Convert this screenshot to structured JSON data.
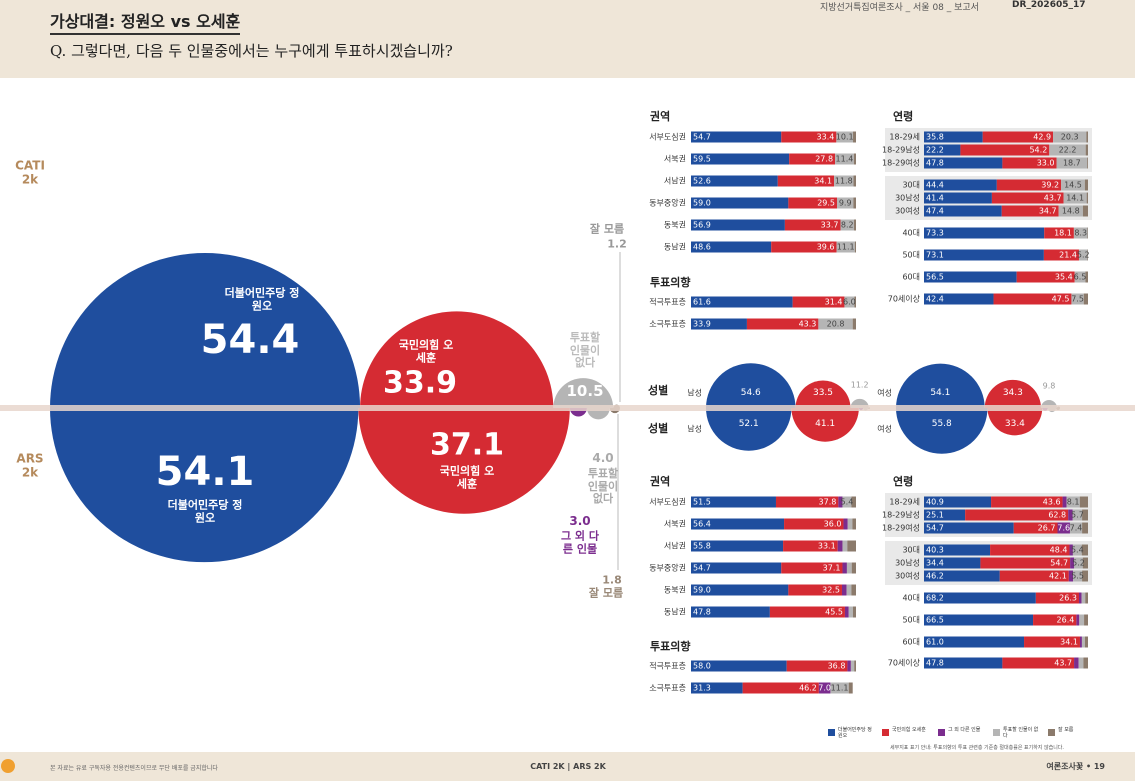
{
  "header": {
    "title": "가상대결: 정원오 vs 오세훈",
    "question": "Q. 그렇다면, 다음 두 인물중에서는 누구에게 투표하시겠습니까?",
    "report": "지방선거특집여론조사 _ 서울 08 _ 보고서",
    "code": "DR_202605_17"
  },
  "chart_data": [
    {
      "type": "bubble",
      "groups": [
        "CATI 2k",
        "ARS 2k"
      ],
      "series": [
        {
          "name": "더불어민주당 정원오",
          "color": "#1f4e9e",
          "values": [
            54.4,
            54.1
          ]
        },
        {
          "name": "국민의힘 오세훈",
          "color": "#d52b33",
          "values": [
            33.9,
            37.1
          ]
        },
        {
          "name": "그 외 다른 인물",
          "color": "#7b2d8e",
          "values": [
            null,
            3.0
          ],
          "value_labels": [
            null,
            "3.0"
          ]
        },
        {
          "name": "투표할 인물이 없다",
          "color": "#b5b5b5",
          "values": [
            10.5,
            4.0
          ],
          "value_labels": [
            "10.5",
            "4.0"
          ]
        },
        {
          "name": "잘 모름",
          "color": "#8b7a6b",
          "values": [
            1.2,
            1.8
          ]
        }
      ]
    },
    {
      "type": "bar",
      "title": "권역",
      "xlim": [
        0,
        100
      ],
      "categories": [
        "서부도심권",
        "서북권",
        "서남권",
        "동부중앙권",
        "동북권",
        "동남권"
      ],
      "series": [
        {
          "color": "#1f4e9e",
          "values": [
            54.7,
            59.5,
            52.6,
            59.0,
            56.9,
            48.6
          ],
          "value_labels": [
            "54.7",
            "59.5",
            "52.6",
            "59.0",
            "56.9",
            "48.6"
          ]
        },
        {
          "color": "#d52b33",
          "values": [
            33.4,
            27.8,
            34.1,
            29.5,
            33.7,
            39.6
          ]
        },
        {
          "color": "#b5b5b5",
          "values": [
            10.1,
            11.4,
            11.8,
            9.9,
            8.2,
            11.1
          ]
        },
        {
          "color": "#8b7a6b",
          "values": [
            1.8,
            1.3,
            1.5,
            1.6,
            1.2,
            0.7
          ]
        }
      ]
    },
    {
      "type": "bar",
      "title": "투표의향",
      "xlim": [
        0,
        100
      ],
      "categories": [
        "적극투표층",
        "소극투표층"
      ],
      "series": [
        {
          "color": "#1f4e9e",
          "values": [
            61.6,
            33.9
          ]
        },
        {
          "color": "#d52b33",
          "values": [
            31.4,
            43.3
          ]
        },
        {
          "color": "#b5b5b5",
          "values": [
            6.0,
            20.8
          ],
          "value_labels": [
            "6.0",
            "20.8"
          ]
        },
        {
          "color": "#8b7a6b",
          "values": [
            1.0,
            2.0
          ]
        }
      ]
    },
    {
      "type": "bar",
      "title": "연령",
      "xlim": [
        0,
        100
      ],
      "categories": [
        "18-29세",
        "18-29남성",
        "18-29여성",
        "30대",
        "30남성",
        "30여성",
        "40대",
        "50대",
        "60대",
        "70세이상"
      ],
      "series": [
        {
          "color": "#1f4e9e",
          "values": [
            35.8,
            22.2,
            47.8,
            44.4,
            41.4,
            47.4,
            73.3,
            73.1,
            56.5,
            42.4
          ]
        },
        {
          "color": "#d52b33",
          "values": [
            42.9,
            54.2,
            33.0,
            39.2,
            43.7,
            34.7,
            18.1,
            21.4,
            35.4,
            47.5
          ],
          "value_labels": [
            "42.9",
            "54.2",
            "33.0",
            "39.2",
            "43.7",
            "34.7",
            "18.1",
            "21.4",
            "35.4",
            "47.5"
          ]
        },
        {
          "color": "#b5b5b5",
          "values": [
            20.3,
            22.2,
            18.7,
            14.5,
            14.1,
            14.8,
            8.3,
            5.2,
            6.5,
            7.5
          ]
        },
        {
          "color": "#8b7a6b",
          "values": [
            1.0,
            1.4,
            0.5,
            1.9,
            0.8,
            3.1,
            0.3,
            0.3,
            1.6,
            2.6
          ]
        }
      ]
    },
    {
      "type": "bubble",
      "title": "성별",
      "categories": [
        "남성",
        "여성"
      ],
      "series": [
        {
          "color": "#1f4e9e",
          "values": [
            54.6,
            54.1
          ]
        },
        {
          "color": "#d52b33",
          "values": [
            33.5,
            34.3
          ]
        },
        {
          "color": "#b5b5b5",
          "values": [
            11.2,
            9.8
          ]
        },
        {
          "color": "#8b7a6b",
          "values": [
            0.7,
            1.8
          ]
        }
      ]
    },
    {
      "type": "bubble",
      "title": "성별",
      "categories": [
        "남성",
        "여성"
      ],
      "series": [
        {
          "color": "#1f4e9e",
          "values": [
            52.1,
            55.8
          ]
        },
        {
          "color": "#d52b33",
          "values": [
            41.1,
            33.4
          ]
        },
        {
          "color": "#7b2d8e",
          "values": [
            2.6,
            3.4
          ]
        },
        {
          "color": "#b5b5b5",
          "values": [
            3.0,
            5.0
          ]
        },
        {
          "color": "#8b7a6b",
          "values": [
            1.2,
            2.4
          ]
        }
      ]
    },
    {
      "type": "bar",
      "title": "권역",
      "xlim": [
        0,
        100
      ],
      "categories": [
        "서부도심권",
        "서북권",
        "서남권",
        "동부중앙권",
        "동북권",
        "동남권"
      ],
      "series": [
        {
          "color": "#1f4e9e",
          "values": [
            51.5,
            56.4,
            55.8,
            54.7,
            59.0,
            47.8
          ],
          "value_labels": [
            "51.5",
            "56.4",
            "55.8",
            "54.7",
            "59.0",
            "47.8"
          ]
        },
        {
          "color": "#d52b33",
          "values": [
            37.8,
            36.0,
            33.1,
            37.1,
            32.5,
            45.5
          ],
          "value_labels": [
            "37.8",
            "36.0",
            "33.1",
            "37.1",
            "32.5",
            "45.5"
          ]
        },
        {
          "color": "#7b2d8e",
          "values": [
            2.5,
            2.6,
            2.9,
            2.7,
            2.8,
            2.3
          ]
        },
        {
          "color": "#b5b5b5",
          "values": [
            5.4,
            2.8,
            2.9,
            2.9,
            2.9,
            2.5
          ]
        },
        {
          "color": "#8b7a6b",
          "values": [
            2.8,
            2.2,
            5.3,
            2.6,
            2.8,
            1.9
          ]
        }
      ]
    },
    {
      "type": "bar",
      "title": "투표의향",
      "xlim": [
        0,
        100
      ],
      "categories": [
        "적극투표층",
        "소극투표층"
      ],
      "series": [
        {
          "color": "#1f4e9e",
          "values": [
            58.0,
            31.3
          ],
          "value_labels": [
            "58.0",
            "31.3"
          ]
        },
        {
          "color": "#d52b33",
          "values": [
            36.8,
            46.2
          ]
        },
        {
          "color": "#7b2d8e",
          "values": [
            2.1,
            7.0
          ],
          "value_labels": [
            null,
            "7.0"
          ]
        },
        {
          "color": "#b5b5b5",
          "values": [
            2.0,
            11.1
          ]
        },
        {
          "color": "#8b7a6b",
          "values": [
            1.1,
            2.4
          ]
        }
      ]
    },
    {
      "type": "bar",
      "title": "연령",
      "xlim": [
        0,
        100
      ],
      "categories": [
        "18-29세",
        "18-29남성",
        "18-29여성",
        "30대",
        "30남성",
        "30여성",
        "40대",
        "50대",
        "60대",
        "70세이상"
      ],
      "series": [
        {
          "color": "#1f4e9e",
          "values": [
            40.9,
            25.1,
            54.7,
            40.3,
            34.4,
            46.2,
            68.2,
            66.5,
            61.0,
            47.8
          ],
          "value_labels": [
            "40.9",
            "25.1",
            "54.7",
            "40.3",
            "34.4",
            "46.2",
            "68.2",
            "66.5",
            "61.0",
            "47.8"
          ]
        },
        {
          "color": "#d52b33",
          "values": [
            43.6,
            62.8,
            26.7,
            48.4,
            54.7,
            42.1,
            26.3,
            26.4,
            34.1,
            43.7
          ]
        },
        {
          "color": "#7b2d8e",
          "values": [
            2.4,
            2.8,
            7.6,
            2.1,
            2.5,
            2.6,
            1.6,
            1.8,
            1.2,
            2.8
          ]
        },
        {
          "color": "#b5b5b5",
          "values": [
            8.1,
            5.7,
            7.4,
            5.4,
            5.2,
            5.5,
            2.2,
            2.9,
            1.8,
            2.9
          ]
        },
        {
          "color": "#8b7a6b",
          "values": [
            5.0,
            3.6,
            3.6,
            3.8,
            3.2,
            3.6,
            1.7,
            2.4,
            1.9,
            2.8
          ]
        }
      ]
    }
  ],
  "note": "세부지표 표기 안내: 투표의향의 투표 관련층 기준층 절대층률은 표기하지 않습니다.",
  "footer": {
    "notice": "본 자료는 유료 구독자용 전용컨텐츠이므로 무단 배포를 금지합니다",
    "center": "CATI 2K | ARS 2K",
    "page": "여론조사꽃 • 19"
  }
}
